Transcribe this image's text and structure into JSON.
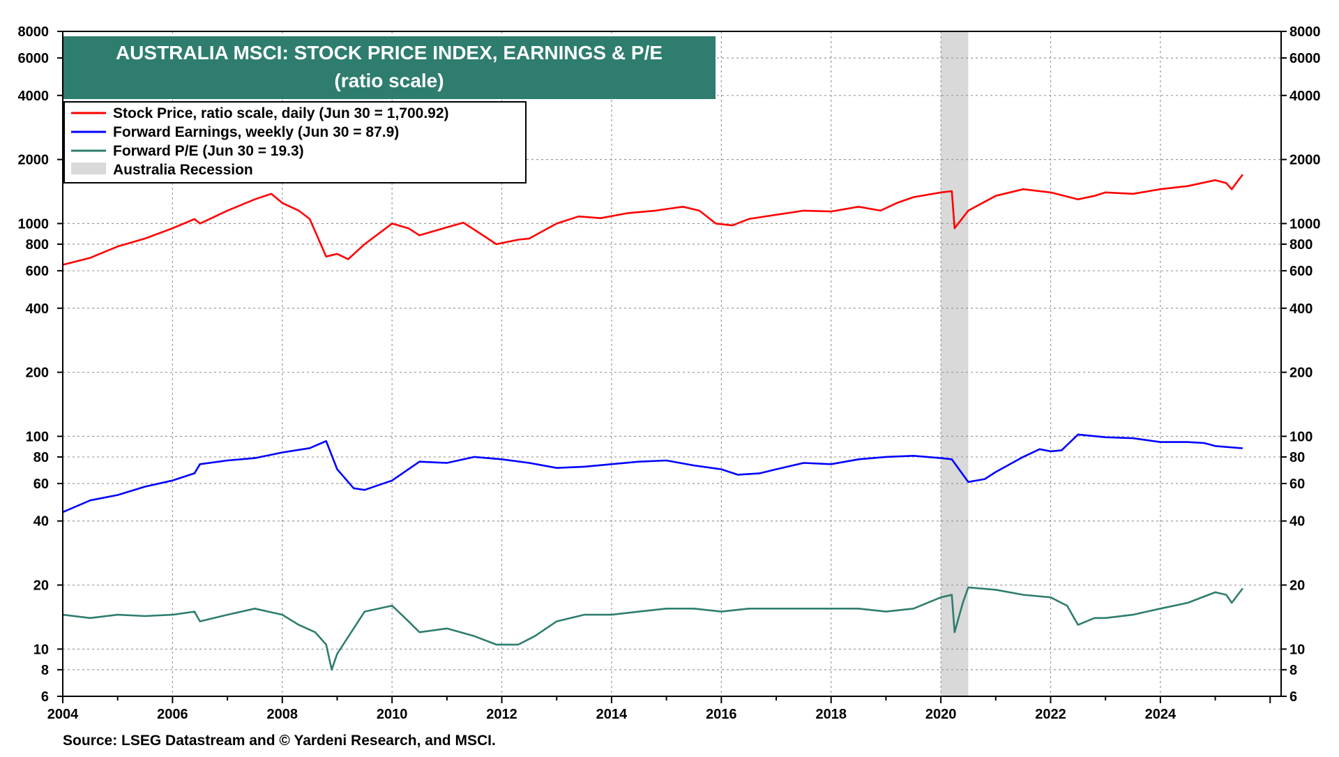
{
  "chart_data": {
    "type": "line",
    "title": "AUSTRALIA MSCI: STOCK PRICE INDEX, EARNINGS & P/E",
    "subtitle": "(ratio scale)",
    "scale": "log",
    "x_range": [
      2004.0,
      2026.2
    ],
    "ylim": [
      6,
      8000
    ],
    "x_ticks": [
      "2004",
      "2006",
      "2008",
      "2010",
      "2012",
      "2014",
      "2016",
      "2018",
      "2020",
      "2022",
      "2024"
    ],
    "y_ticks": [
      "6",
      "8",
      "10",
      "20",
      "40",
      "60",
      "80",
      "100",
      "200",
      "400",
      "600",
      "800",
      "1000",
      "2000",
      "4000",
      "6000",
      "8000"
    ],
    "grid": true,
    "legend_position": "top-left",
    "legend": [
      {
        "label": "Stock Price, ratio scale, daily (Jun 30 = 1,700.92)",
        "color": "#ff0000",
        "kind": "line"
      },
      {
        "label": "Forward Earnings, weekly (Jun 30 = 87.9)",
        "color": "#0000ff",
        "kind": "line"
      },
      {
        "label": "Forward P/E (Jun 30 = 19.3)",
        "color": "#2e7d6e",
        "kind": "line"
      },
      {
        "label": "Australia Recession",
        "color": "#d9d9d9",
        "kind": "area"
      }
    ],
    "recessions": [
      {
        "name": "Australia Recession",
        "start": 2020.0,
        "end": 2020.5
      }
    ],
    "series": [
      {
        "name": "Stock Price",
        "color": "#ff0000",
        "x": [
          2004.0,
          2004.5,
          2005.0,
          2005.5,
          2006.0,
          2006.4,
          2006.5,
          2007.0,
          2007.5,
          2007.8,
          2008.0,
          2008.3,
          2008.5,
          2008.8,
          2009.0,
          2009.2,
          2009.5,
          2010.0,
          2010.3,
          2010.5,
          2011.0,
          2011.3,
          2011.6,
          2011.9,
          2012.3,
          2012.5,
          2013.0,
          2013.4,
          2013.8,
          2014.3,
          2014.8,
          2015.3,
          2015.6,
          2015.9,
          2016.2,
          2016.5,
          2017.0,
          2017.5,
          2018.0,
          2018.5,
          2018.9,
          2019.2,
          2019.5,
          2020.0,
          2020.2,
          2020.25,
          2020.5,
          2021.0,
          2021.5,
          2022.0,
          2022.5,
          2022.8,
          2023.0,
          2023.5,
          2024.0,
          2024.5,
          2025.0,
          2025.2,
          2025.3,
          2025.5
        ],
        "values": [
          640,
          690,
          780,
          850,
          950,
          1050,
          1000,
          1150,
          1300,
          1380,
          1250,
          1150,
          1050,
          700,
          720,
          680,
          800,
          1000,
          950,
          880,
          960,
          1010,
          900,
          800,
          840,
          850,
          1000,
          1080,
          1060,
          1120,
          1150,
          1200,
          1150,
          1000,
          980,
          1050,
          1100,
          1150,
          1140,
          1200,
          1150,
          1250,
          1330,
          1400,
          1420,
          950,
          1150,
          1350,
          1450,
          1400,
          1300,
          1350,
          1400,
          1380,
          1450,
          1500,
          1600,
          1550,
          1450,
          1700.92
        ]
      },
      {
        "name": "Forward Earnings",
        "color": "#0000ff",
        "x": [
          2004.0,
          2004.5,
          2005.0,
          2005.5,
          2006.0,
          2006.4,
          2006.5,
          2007.0,
          2007.5,
          2008.0,
          2008.5,
          2008.8,
          2009.0,
          2009.3,
          2009.5,
          2010.0,
          2010.5,
          2011.0,
          2011.5,
          2012.0,
          2012.5,
          2013.0,
          2013.5,
          2014.0,
          2014.5,
          2015.0,
          2015.5,
          2016.0,
          2016.3,
          2016.7,
          2017.0,
          2017.5,
          2018.0,
          2018.5,
          2019.0,
          2019.5,
          2020.0,
          2020.2,
          2020.5,
          2020.8,
          2021.0,
          2021.5,
          2021.8,
          2022.0,
          2022.2,
          2022.5,
          2023.0,
          2023.5,
          2024.0,
          2024.5,
          2024.8,
          2025.0,
          2025.5
        ],
        "values": [
          44,
          50,
          53,
          58,
          62,
          67,
          74,
          77,
          79,
          84,
          88,
          95,
          70,
          57,
          56,
          62,
          76,
          75,
          80,
          78,
          75,
          71,
          72,
          74,
          76,
          77,
          73,
          70,
          66,
          67,
          70,
          75,
          74,
          78,
          80,
          81,
          79,
          78,
          61,
          63,
          68,
          80,
          87,
          85,
          86,
          102,
          99,
          98,
          94,
          94,
          93,
          90,
          87.9
        ]
      },
      {
        "name": "Forward P/E",
        "color": "#2e7d6e",
        "x": [
          2004.0,
          2004.5,
          2005.0,
          2005.5,
          2006.0,
          2006.4,
          2006.5,
          2007.0,
          2007.5,
          2008.0,
          2008.3,
          2008.6,
          2008.8,
          2008.9,
          2009.0,
          2009.5,
          2010.0,
          2010.3,
          2010.5,
          2011.0,
          2011.5,
          2011.9,
          2012.3,
          2012.6,
          2013.0,
          2013.5,
          2014.0,
          2014.5,
          2015.0,
          2015.5,
          2016.0,
          2016.5,
          2017.0,
          2017.5,
          2018.0,
          2018.5,
          2019.0,
          2019.5,
          2020.0,
          2020.2,
          2020.25,
          2020.4,
          2020.5,
          2021.0,
          2021.5,
          2022.0,
          2022.3,
          2022.5,
          2022.8,
          2023.0,
          2023.5,
          2024.0,
          2024.5,
          2025.0,
          2025.2,
          2025.3,
          2025.5
        ],
        "values": [
          14.5,
          14.0,
          14.5,
          14.3,
          14.5,
          15.0,
          13.5,
          14.5,
          15.5,
          14.5,
          13.0,
          12.0,
          10.5,
          8.0,
          9.5,
          15.0,
          16.0,
          13.5,
          12.0,
          12.5,
          11.5,
          10.5,
          10.5,
          11.5,
          13.5,
          14.5,
          14.5,
          15.0,
          15.5,
          15.5,
          15.0,
          15.5,
          15.5,
          15.5,
          15.5,
          15.5,
          15.0,
          15.5,
          17.5,
          18.0,
          12.0,
          16.5,
          19.5,
          19.0,
          18.0,
          17.5,
          16.0,
          13.0,
          14.0,
          14.0,
          14.5,
          15.5,
          16.5,
          18.5,
          18.0,
          16.5,
          19.3
        ]
      }
    ]
  },
  "source": "Source: LSEG Datastream and © Yardeni Research, and MSCI."
}
